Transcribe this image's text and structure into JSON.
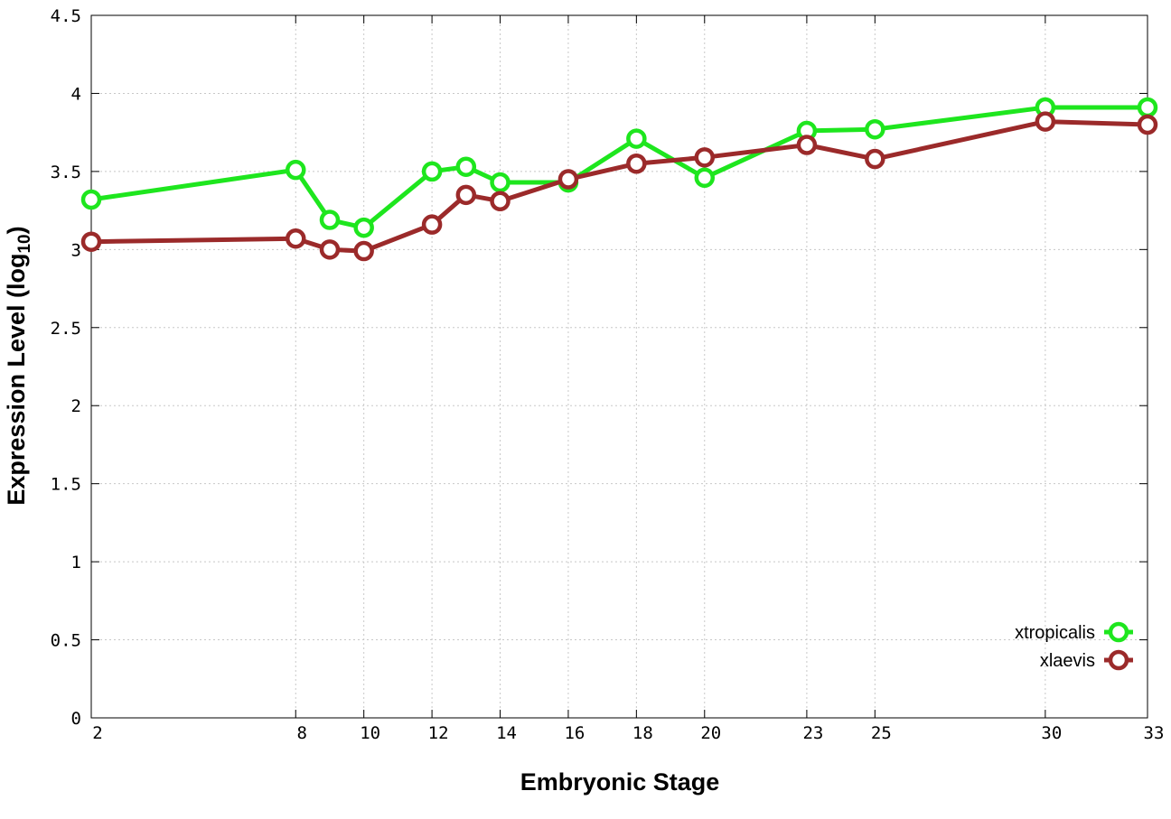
{
  "chart_data": {
    "type": "line",
    "xlabel": "Embryonic Stage",
    "ylabel": "Expression Level (log",
    "ylabel_subscript": "10",
    "ylabel_close": ")",
    "x": [
      2,
      8,
      9,
      10,
      12,
      13,
      14,
      16,
      18,
      20,
      23,
      25,
      30,
      33
    ],
    "x_tick_labels": [
      "2",
      "8",
      "10",
      "12",
      "14",
      "16",
      "18",
      "20",
      "23",
      "25",
      "30",
      "33"
    ],
    "x_ticks": [
      2,
      8,
      10,
      12,
      14,
      16,
      18,
      20,
      23,
      25,
      30,
      33
    ],
    "xlim": [
      2,
      33
    ],
    "y_tick_labels": [
      "0",
      "0.5",
      "1",
      "1.5",
      "2",
      "2.5",
      "3",
      "3.5",
      "4",
      "4.5"
    ],
    "y_ticks": [
      0,
      0.5,
      1,
      1.5,
      2,
      2.5,
      3,
      3.5,
      4,
      4.5
    ],
    "ylim": [
      0,
      4.5
    ],
    "grid": true,
    "legend_position": "bottom-right",
    "series": [
      {
        "name": "xtropicalis",
        "color": "#1ee61e",
        "values": [
          3.32,
          3.51,
          3.19,
          3.14,
          3.5,
          3.53,
          3.43,
          3.43,
          3.71,
          3.46,
          3.76,
          3.77,
          3.91,
          3.91
        ]
      },
      {
        "name": "xlaevis",
        "color": "#9b2a2a",
        "values": [
          3.05,
          3.07,
          3.0,
          2.99,
          3.16,
          3.35,
          3.31,
          3.45,
          3.55,
          3.59,
          3.67,
          3.58,
          3.82,
          3.8
        ]
      }
    ]
  }
}
